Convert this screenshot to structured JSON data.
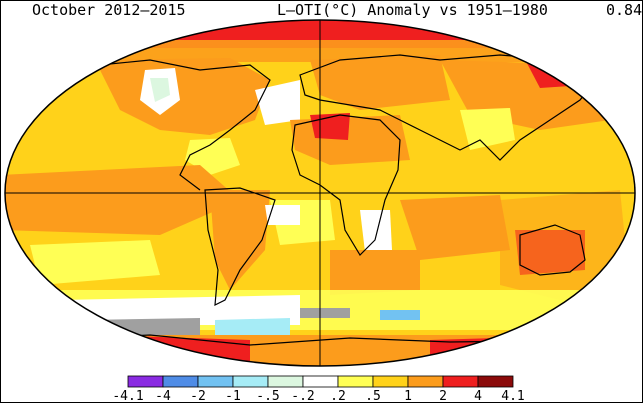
{
  "header": {
    "period": "October 2012–2015",
    "title": "L–OTI(°C) Anomaly vs 1951–1980",
    "global_mean": "0.84"
  },
  "legend": {
    "bins": [
      {
        "color": "#8a2be2",
        "label": "-4.1"
      },
      {
        "color": "#4f8ce6",
        "label": "-4"
      },
      {
        "color": "#72c2f2",
        "label": "-2"
      },
      {
        "color": "#a6ecf6",
        "label": "-1"
      },
      {
        "color": "#dcf7e0",
        "label": "-.5"
      },
      {
        "color": "#ffffff",
        "label": "-.2"
      },
      {
        "color": "#ffff55",
        "label": ".2"
      },
      {
        "color": "#ffd21a",
        "label": ".5"
      },
      {
        "color": "#fc9c1c",
        "label": "1"
      },
      {
        "color": "#ef1f1f",
        "label": "2"
      },
      {
        "color": "#8b0a0a",
        "label": "4"
      }
    ],
    "max_label": "4.1"
  },
  "colors": {
    "warm_base": "#ffd21a",
    "orange": "#fc9c1c",
    "red": "#ef1f1f",
    "yellow": "#ffff55",
    "white": "#ffffff",
    "light_blue": "#a6ecf6",
    "gray_missing": "#a0a0a0"
  }
}
